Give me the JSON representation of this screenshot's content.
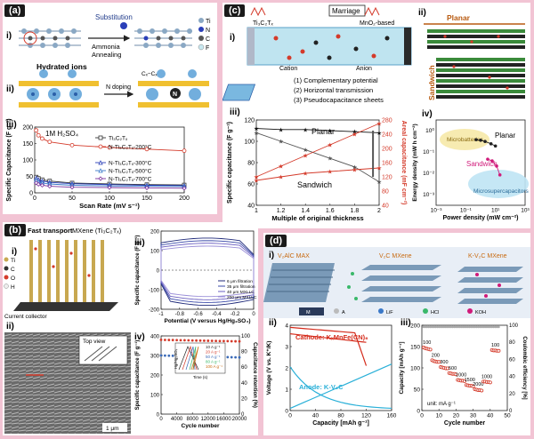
{
  "panels": {
    "a": {
      "label": "(a)",
      "sub_i": "i)",
      "sub_ii": "ii)",
      "sub_iii": "iii)",
      "substitution": "Substitution",
      "process": "Ammonia\nAnnealing",
      "legend_atoms": [
        "Ti",
        "N",
        "C",
        "F"
      ],
      "hydrated": "Hydrated ions",
      "ndoping": "N doping",
      "cc_label": "Cₓ−Cₓ",
      "chart_note": "1M H₂SO₄"
    },
    "b": {
      "label": "(b)",
      "sub_i": "i)",
      "sub_ii": "ii)",
      "sub_iii": "iii)",
      "sub_iv": "iv)",
      "fast_transport": "Fast transport",
      "mxene": "MXene (Ti₃C₂Tₓ)",
      "legend_atoms": [
        "Ti",
        "C",
        "O",
        "H"
      ],
      "current_collector": "Current collector",
      "top_view": "Top view",
      "scale": "1 μm"
    },
    "c": {
      "label": "(c)",
      "sub_i": "i)",
      "sub_ii": "ii)",
      "sub_iii": "iii)",
      "sub_iv": "iv)",
      "marriage": "Marriage",
      "ti3c2tx": "Ti₃C₂Tₓ",
      "mno2": "MnO₂-based",
      "cation": "Cation",
      "anion": "Anion",
      "features": [
        "(1) Complementary potential",
        "(2) Horizontal transmission",
        "(3) Pseudocapacitance sheets"
      ],
      "planar": "Planar",
      "sandwich": "Sandwich"
    },
    "d": {
      "label": "(d)",
      "sub_i": "i)",
      "sub_ii": "ii)",
      "sub_iii": "iii)",
      "v2alc": "V₂AlC MAX",
      "v2c": "V₂C MXene",
      "kv2c": "K-V₂C MXene",
      "legend_species": [
        "M",
        "A",
        "LiF",
        "HCl",
        "KOH"
      ],
      "cathode": "Cathode: KₓMnFe(CN)₆",
      "anode": "Anode: K-V₂C",
      "unit_note": "unit: mA g⁻¹"
    }
  },
  "chart_data": [
    {
      "id": "a-iii",
      "type": "line",
      "ylabel": "Specific Capacitance (F g⁻¹)",
      "xlabel": "Scan Rate (mV s⁻¹)",
      "xlim": [
        0,
        200
      ],
      "ylim": [
        0,
        200
      ],
      "xticks": [
        0,
        50,
        100,
        150,
        200
      ],
      "yticks": [
        0,
        50,
        100,
        150,
        200
      ],
      "x": [
        2,
        5,
        10,
        20,
        50,
        100,
        150,
        200
      ],
      "series": [
        {
          "name": "Ti₃C₂Tₓ",
          "color": "#333333",
          "marker": "square",
          "values": [
            48,
            44,
            40,
            36,
            30,
            27,
            25,
            24
          ]
        },
        {
          "name": "N-Ti₃C₂Tₓ-200°C",
          "color": "#d43a2a",
          "marker": "circle",
          "values": [
            190,
            175,
            165,
            155,
            145,
            138,
            133,
            128
          ]
        },
        {
          "name": "N-Ti₃C₂Tₓ-300°C",
          "color": "#2a3fb8",
          "marker": "triangle",
          "values": [
            45,
            40,
            36,
            32,
            28,
            25,
            23,
            22
          ]
        },
        {
          "name": "N-Ti₃C₂Tₓ-500°C",
          "color": "#3a78c8",
          "marker": "triangle",
          "values": [
            38,
            33,
            30,
            27,
            23,
            21,
            20,
            19
          ]
        },
        {
          "name": "N-Ti₃C₂Tₓ-700°C",
          "color": "#7a2e9a",
          "marker": "diamond",
          "values": [
            30,
            26,
            23,
            20,
            17,
            16,
            15,
            14
          ]
        }
      ]
    },
    {
      "id": "b-iii",
      "type": "line",
      "ylabel": "Specific capacitance (F g⁻¹)",
      "xlabel": "Potential (V versus Hg/Hg₂SO₄)",
      "xlim": [
        -1.0,
        0.0
      ],
      "ylim": [
        -200,
        200
      ],
      "xticks": [
        -1.0,
        -0.8,
        -0.6,
        -0.4,
        -0.2,
        0.0
      ],
      "yticks": [
        -200,
        -100,
        0,
        100,
        200
      ],
      "series": [
        {
          "name": "6 μm filtration",
          "color": "#1f2a7a",
          "scale": 1.0
        },
        {
          "name": "35 μm filtration",
          "color": "#3a49a8",
          "scale": 0.92
        },
        {
          "name": "40 μm MXLLC",
          "color": "#6b5fc0",
          "scale": 0.84
        },
        {
          "name": "200 μm MXLLC",
          "color": "#9b8fd8",
          "scale": 0.75
        }
      ]
    },
    {
      "id": "b-iv",
      "type": "scatter",
      "ylabel": "Specific capacitance (F g⁻¹)",
      "y2label": "Capacitance retention (%)",
      "xlabel": "Cycle number",
      "xlim": [
        0,
        20000
      ],
      "ylim": [
        0,
        400
      ],
      "y2lim": [
        0,
        100
      ],
      "xticks": [
        0,
        4000,
        8000,
        12000,
        16000,
        20000
      ],
      "yticks": [
        0,
        100,
        200,
        300,
        400
      ],
      "y2ticks": [
        0,
        20,
        40,
        60,
        80,
        100
      ],
      "capacitance": 300,
      "retention": 93,
      "inset": {
        "xlabel": "Time (s)",
        "ylabel": "Hg/Hg₂SO₄",
        "legend": [
          "10 A g⁻¹",
          "20 A g⁻¹",
          "50 A g⁻¹",
          "80 A g⁻¹",
          "100 A g⁻¹"
        ]
      }
    },
    {
      "id": "c-iii",
      "type": "line",
      "ylabel": "Specific capacitance (F g⁻¹)",
      "y2label": "Areal capacitance (mF cm⁻²)",
      "xlabel": "Multiple of original thickness",
      "xlim": [
        1.0,
        2.0
      ],
      "ylim": [
        40,
        120
      ],
      "y2lim": [
        40,
        280
      ],
      "xticks": [
        1.0,
        1.2,
        1.4,
        1.6,
        1.8,
        2.0
      ],
      "yticks": [
        40,
        60,
        80,
        100,
        120
      ],
      "y2ticks": [
        40,
        80,
        120,
        160,
        200,
        240,
        280
      ],
      "x": [
        1.0,
        1.2,
        1.4,
        1.6,
        1.8,
        2.0
      ],
      "series": [
        {
          "name": "Planar",
          "axis": "left",
          "color": "#111111",
          "marker": "star",
          "values": [
            112,
            111,
            111,
            110,
            109,
            108
          ]
        },
        {
          "name": "Sandwich",
          "axis": "left",
          "color": "#555555",
          "marker": "star",
          "values": [
            108,
            100,
            92,
            84,
            76,
            62
          ]
        },
        {
          "name": "Planar (areal)",
          "axis": "right",
          "color": "#d43a2a",
          "marker": "star",
          "values": [
            120,
            150,
            180,
            210,
            240,
            270
          ]
        },
        {
          "name": "Sandwich (areal)",
          "axis": "right",
          "color": "#d43a2a",
          "marker": "star",
          "values": [
            110,
            120,
            130,
            135,
            140,
            145
          ]
        }
      ]
    },
    {
      "id": "c-iv",
      "type": "scatter",
      "ylabel": "Energy density (mW h cm⁻²)",
      "xlabel": "Power density (mW cm⁻²)",
      "xlim": [
        0.001,
        1000
      ],
      "ylim": [
        0.0001,
        10
      ],
      "xscale": "log",
      "yscale": "log",
      "xticks": [
        "10⁻³",
        "10⁻¹",
        "10¹",
        "10³"
      ],
      "yticks": [
        "10⁻³",
        "10⁻²",
        "10⁻¹",
        "10⁰"
      ],
      "regions": [
        "Microbatteries",
        "Microsupercapacitors"
      ],
      "series": [
        {
          "name": "Planar",
          "color": "#222222",
          "points": [
            [
              0.5,
              0.7
            ],
            [
              1,
              0.65
            ],
            [
              2,
              0.55
            ],
            [
              5,
              0.4
            ],
            [
              10,
              0.3
            ]
          ]
        },
        {
          "name": "Sandwich",
          "color": "#d01a7a",
          "points": [
            [
              3,
              0.05
            ],
            [
              6,
              0.04
            ],
            [
              12,
              0.02
            ],
            [
              20,
              0.006
            ]
          ]
        }
      ]
    },
    {
      "id": "d-ii",
      "type": "line",
      "ylabel": "Voltage (V vs. K⁺/K)",
      "xlabel": "Capacity [mAh g⁻¹]",
      "xlim": [
        0,
        160
      ],
      "ylim": [
        0,
        4
      ],
      "xticks": [
        0,
        40,
        80,
        120,
        160
      ],
      "yticks": [
        0,
        1,
        2,
        3,
        4
      ]
    },
    {
      "id": "d-iii",
      "type": "scatter",
      "ylabel": "Capacity [mAh g⁻¹]",
      "y2label": "Coulombic efficiency [%]",
      "xlabel": "Cycle number",
      "xlim": [
        0,
        50
      ],
      "ylim": [
        0,
        200
      ],
      "y2lim": [
        0,
        100
      ],
      "xticks": [
        0,
        10,
        20,
        30,
        40,
        50
      ],
      "yticks": [
        0,
        50,
        100,
        150,
        200
      ],
      "y2ticks": [
        0,
        20,
        40,
        60,
        80,
        100
      ],
      "rates": [
        {
          "label": "100",
          "x": [
            1,
            2,
            3,
            4,
            5
          ],
          "values": [
            148,
            146,
            145,
            144,
            143
          ]
        },
        {
          "label": "200",
          "x": [
            6,
            7,
            8,
            9,
            10
          ],
          "values": [
            118,
            116,
            115,
            114,
            114
          ]
        },
        {
          "label": "300",
          "x": [
            11,
            12,
            13,
            14,
            15
          ],
          "values": [
            102,
            101,
            100,
            99,
            99
          ]
        },
        {
          "label": "500",
          "x": [
            16,
            17,
            18,
            19,
            20
          ],
          "values": [
            88,
            87,
            86,
            86,
            85
          ]
        },
        {
          "label": "1000",
          "x": [
            21,
            22,
            23,
            24,
            25
          ],
          "values": [
            72,
            71,
            70,
            70,
            69
          ]
        },
        {
          "label": "1500",
          "x": [
            26,
            27,
            28,
            29,
            30
          ],
          "values": [
            60,
            59,
            58,
            58,
            57
          ]
        },
        {
          "label": "2000",
          "x": [
            31,
            32,
            33,
            34,
            35
          ],
          "values": [
            50,
            49,
            48,
            48,
            47
          ]
        },
        {
          "label": "1000",
          "x": [
            36,
            37,
            38,
            39,
            40
          ],
          "values": [
            68,
            68,
            67,
            67,
            66
          ]
        },
        {
          "label": "100",
          "x": [
            41,
            42,
            43,
            44,
            45
          ],
          "values": [
            142,
            141,
            141,
            140,
            140
          ]
        }
      ],
      "efficiency": 98
    }
  ]
}
